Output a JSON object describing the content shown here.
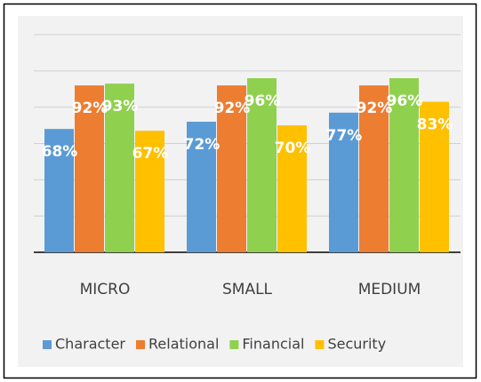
{
  "chart_data": {
    "type": "bar",
    "categories": [
      "MICRO",
      "SMALL",
      "MEDIUM"
    ],
    "series": [
      {
        "name": "Character",
        "color": "#5b9bd5",
        "values": [
          68,
          72,
          77
        ],
        "value_labels": [
          "68%",
          "72%",
          "77%"
        ]
      },
      {
        "name": "Relational",
        "color": "#ed7d31",
        "values": [
          92,
          92,
          92
        ],
        "value_labels": [
          "92%",
          "92%",
          "92%"
        ]
      },
      {
        "name": "Financial",
        "color": "#8fd14f",
        "values": [
          93,
          96,
          96
        ],
        "value_labels": [
          "93%",
          "96%",
          "96%"
        ]
      },
      {
        "name": "Security",
        "color": "#ffc000",
        "values": [
          67,
          70,
          83
        ],
        "value_labels": [
          "67%",
          "70%",
          "83%"
        ]
      }
    ],
    "ylim": [
      0,
      120
    ],
    "yticks": [
      0,
      20,
      40,
      60,
      80,
      100,
      120
    ],
    "grid": true,
    "legend": "bottom"
  }
}
